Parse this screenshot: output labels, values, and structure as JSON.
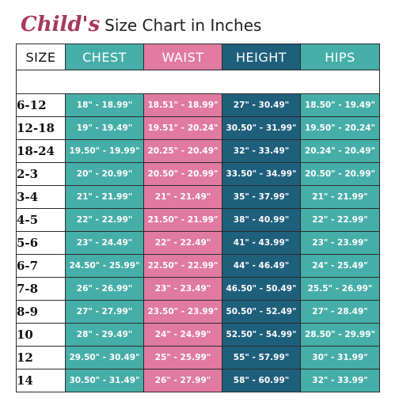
{
  "title": {
    "script": "Child's",
    "rest": "Size Chart in Inches"
  },
  "headers": {
    "size": "SIZE",
    "chest": "CHEST",
    "waist": "WAIST",
    "height": "HEIGHT",
    "hips": "HIPS"
  },
  "colors": {
    "teal": "#46aea8",
    "pink": "#e07aa0",
    "navy": "#1e5f7c",
    "title_pink": "#a8385f"
  },
  "rows": [
    {
      "size": "6-12",
      "chest": "18\" - 18.99\"",
      "waist": "18.51\" - 18.99\"",
      "height": "27\" - 30.49\"",
      "hips": "18.50\" - 19.49\""
    },
    {
      "size": "12-18",
      "chest": "19\" - 19.49\"",
      "waist": "19.51\" - 20.24\"",
      "height": "30.50\" - 31.99\"",
      "hips": "19.50\" - 20.24\""
    },
    {
      "size": "18-24",
      "chest": "19.50\" - 19.99\"",
      "waist": "20.25\" - 20.49\"",
      "height": "32\" - 33.49\"",
      "hips": "20.24\" - 20.49\""
    },
    {
      "size": "2-3",
      "chest": "20\" - 20.99\"",
      "waist": "20.50\" - 20.99\"",
      "height": "33.50\" - 34.99\"",
      "hips": "20.50\" - 20.99\""
    },
    {
      "size": "3-4",
      "chest": "21\" - 21.99\"",
      "waist": "21\" - 21.49\"",
      "height": "35\" - 37.99\"",
      "hips": "21\" - 21.99\""
    },
    {
      "size": "4-5",
      "chest": "22\" - 22.99\"",
      "waist": "21.50\" - 21.99\"",
      "height": "38\" - 40.99\"",
      "hips": "22\" - 22.99\""
    },
    {
      "size": "5-6",
      "chest": "23\" - 24.49\"",
      "waist": "22\" - 22.49\"",
      "height": "41\" - 43.99\"",
      "hips": "23\" - 23.99\""
    },
    {
      "size": "6-7",
      "chest": "24.50\" - 25.99\"",
      "waist": "22.50\" - 22.99\"",
      "height": "44\" - 46.49\"",
      "hips": "24\" - 25.49\""
    },
    {
      "size": "7-8",
      "chest": "26\" - 26.99\"",
      "waist": "23\" - 23.49\"",
      "height": "46.50\" - 50.49\"",
      "hips": "25.5\" - 26.99\""
    },
    {
      "size": "8-9",
      "chest": "27\" - 27.99\"",
      "waist": "23.50\" - 23.99\"",
      "height": "50.50\" - 52.49\"",
      "hips": "27\" - 28.49\""
    },
    {
      "size": "10",
      "chest": "28\" - 29.49\"",
      "waist": "24\" - 24.99\"",
      "height": "52.50\" - 54.99\"",
      "hips": "28.50\" - 29.99\""
    },
    {
      "size": "12",
      "chest": "29.50\" - 30.49\"",
      "waist": "25\" - 25.99\"",
      "height": "55\" - 57.99\"",
      "hips": "30\" - 31.99\""
    },
    {
      "size": "14",
      "chest": "30.50\" - 31.49\"",
      "waist": "26\" - 27.99\"",
      "height": "58\" - 60.99\"",
      "hips": "32\" - 33.99\""
    }
  ]
}
